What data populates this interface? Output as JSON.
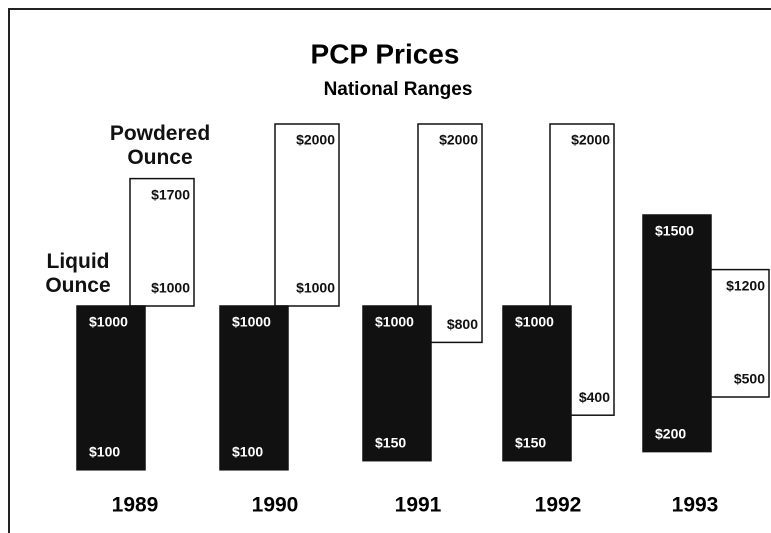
{
  "chart_data": {
    "type": "range-bar",
    "title": "PCP Prices",
    "subtitle": "National Ranges",
    "categories": [
      "1989",
      "1990",
      "1991",
      "1992",
      "1993"
    ],
    "series": [
      {
        "name": "Powdered Ounce",
        "color": "#ffffff",
        "values": [
          [
            1000,
            1700
          ],
          [
            1000,
            2000
          ],
          [
            800,
            2000
          ],
          [
            400,
            2000
          ],
          [
            500,
            1200
          ]
        ],
        "value_labels": [
          [
            "$1000",
            "$1700"
          ],
          [
            "$1000",
            "$2000"
          ],
          [
            "$800",
            "$2000"
          ],
          [
            "$400",
            "$2000"
          ],
          [
            "$500",
            "$1200"
          ]
        ]
      },
      {
        "name": "Liquid Ounce",
        "color": "#111111",
        "values": [
          [
            100,
            1000
          ],
          [
            100,
            1000
          ],
          [
            150,
            1000
          ],
          [
            150,
            1000
          ],
          [
            200,
            1500
          ]
        ],
        "value_labels": [
          [
            "$100",
            "$1000"
          ],
          [
            "$100",
            "$1000"
          ],
          [
            "$150",
            "$1000"
          ],
          [
            "$150",
            "$1000"
          ],
          [
            "$200",
            "$1500"
          ]
        ]
      }
    ]
  }
}
